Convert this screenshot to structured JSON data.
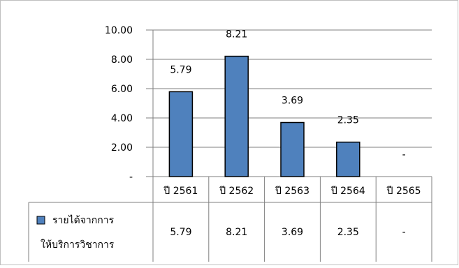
{
  "chart_data": {
    "type": "bar",
    "categories": [
      "ปี 2561",
      "ปี 2562",
      "ปี 2563",
      "ปี 2564",
      "ปี 2565"
    ],
    "series": [
      {
        "name": "รายได้จากการให้บริการวิชาการ",
        "name_lines": [
          "รายได้จากการ",
          "ให้บริการวิชาการ"
        ],
        "values": [
          5.79,
          8.21,
          3.69,
          2.35,
          null
        ],
        "labels": [
          "5.79",
          "8.21",
          "3.69",
          "2.35",
          "-"
        ]
      }
    ],
    "yticks": [
      "-",
      "2.00",
      "4.00",
      "6.00",
      "8.00",
      "10.00"
    ],
    "ylim": [
      0,
      10
    ],
    "grid": true,
    "legend": "data table",
    "colors": {
      "bar": "#4F81BD",
      "bar_stroke": "#000000",
      "grid": "#7f7f7f"
    }
  }
}
